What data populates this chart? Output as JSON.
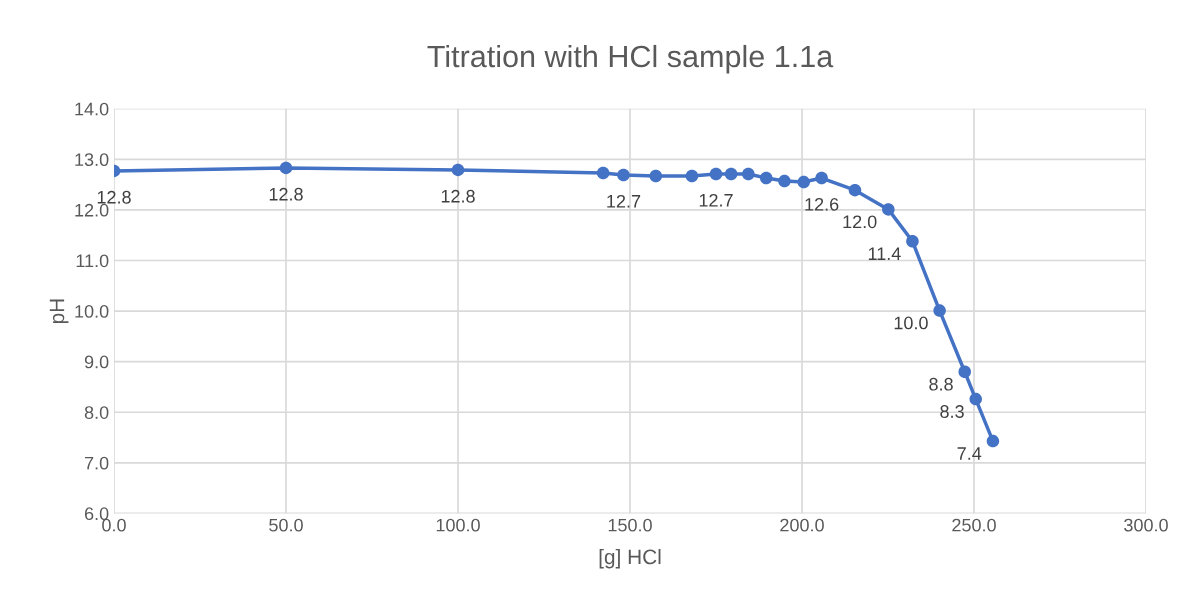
{
  "chart_data": {
    "type": "line",
    "title": "Titration with HCl sample 1.1a",
    "xlabel": "[g] HCl",
    "ylabel": "pH",
    "x": [
      0,
      50,
      100,
      142.2,
      148.1,
      157.5,
      168,
      175,
      179.4,
      184.4,
      189.6,
      194.9,
      200.5,
      205.7,
      215.4,
      225.1,
      232.1,
      240,
      247.3,
      250.5,
      255.5
    ],
    "series": [
      {
        "color": "#4472c4",
        "values": [
          12.77,
          12.83,
          12.79,
          12.73,
          12.69,
          12.67,
          12.67,
          12.71,
          12.71,
          12.71,
          12.63,
          12.57,
          12.55,
          12.63,
          12.39,
          12.01,
          11.38,
          10.01,
          8.8,
          8.26,
          7.43
        ],
        "value_labels": [
          "12.8",
          "12.8",
          "12.8",
          null,
          "12.7",
          null,
          null,
          "12.7",
          null,
          null,
          null,
          null,
          null,
          "12.6",
          null,
          "12.0",
          "11.4",
          "10.0",
          "8.8",
          "8.3",
          "7.4"
        ]
      }
    ],
    "xlim": [
      0,
      300
    ],
    "xticks": [
      {
        "value": 0,
        "label": "0.0"
      },
      {
        "value": 50,
        "label": "50.0"
      },
      {
        "value": 100,
        "label": "100.0"
      },
      {
        "value": 150,
        "label": "150.0"
      },
      {
        "value": 200,
        "label": "200.0"
      },
      {
        "value": 250,
        "label": "250.0"
      },
      {
        "value": 300,
        "label": "300.0"
      }
    ],
    "ylim": [
      6,
      14
    ],
    "yticks": [
      {
        "value": 6,
        "label": "6.0"
      },
      {
        "value": 7,
        "label": "7.0"
      },
      {
        "value": 8,
        "label": "8.0"
      },
      {
        "value": 9,
        "label": "9.0"
      },
      {
        "value": 10,
        "label": "10.0"
      },
      {
        "value": 11,
        "label": "11.0"
      },
      {
        "value": 12,
        "label": "12.0"
      },
      {
        "value": 13,
        "label": "13.0"
      },
      {
        "value": 14,
        "label": "14.0"
      }
    ],
    "grid": true,
    "marker": "circle",
    "line_style": "solid"
  }
}
